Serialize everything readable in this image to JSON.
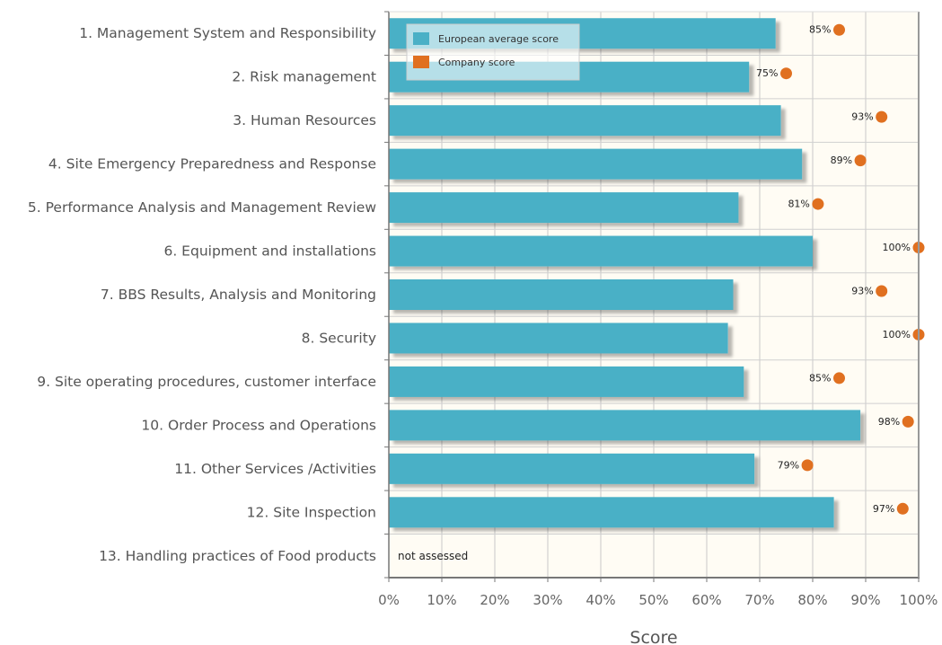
{
  "chart_data": {
    "type": "bar",
    "orientation": "horizontal",
    "categories": [
      "1. Management System and Responsibility",
      "2. Risk management",
      "3. Human Resources",
      "4. Site Emergency Preparedness and Response",
      "5. Performance Analysis and Management Review",
      "6. Equipment and installations",
      "7. BBS Results, Analysis and Monitoring",
      "8. Security",
      "9. Site operating procedures, customer interface",
      "10. Order Process and Operations",
      "11. Other Services /Activities",
      "12. Site Inspection",
      "13. Handling practices of Food products"
    ],
    "series": [
      {
        "name": "European average score",
        "kind": "bar",
        "color": "#4ab0c6",
        "values": [
          73,
          68,
          74,
          78,
          66,
          80,
          65,
          64,
          67,
          89,
          69,
          84,
          null
        ]
      },
      {
        "name": "Company score",
        "kind": "point",
        "color": "#e07020",
        "values": [
          85,
          75,
          93,
          89,
          81,
          100,
          93,
          100,
          85,
          98,
          79,
          97,
          null
        ],
        "labels": [
          "85%",
          "75%",
          "93%",
          "89%",
          "81%",
          "100%",
          "93%",
          "100%",
          "85%",
          "98%",
          "79%",
          "97%",
          ""
        ]
      }
    ],
    "not_assessed_label": "not assessed",
    "xlabel": "Score",
    "xlim": [
      0,
      100
    ],
    "xticks": [
      0,
      10,
      20,
      30,
      40,
      50,
      60,
      70,
      80,
      90,
      100
    ],
    "xtick_labels": [
      "0%",
      "10%",
      "20%",
      "30%",
      "40%",
      "50%",
      "60%",
      "70%",
      "80%",
      "90%",
      "100%"
    ],
    "grid": true,
    "plot_background": "#fffcf4",
    "legend_position": "top-left"
  }
}
